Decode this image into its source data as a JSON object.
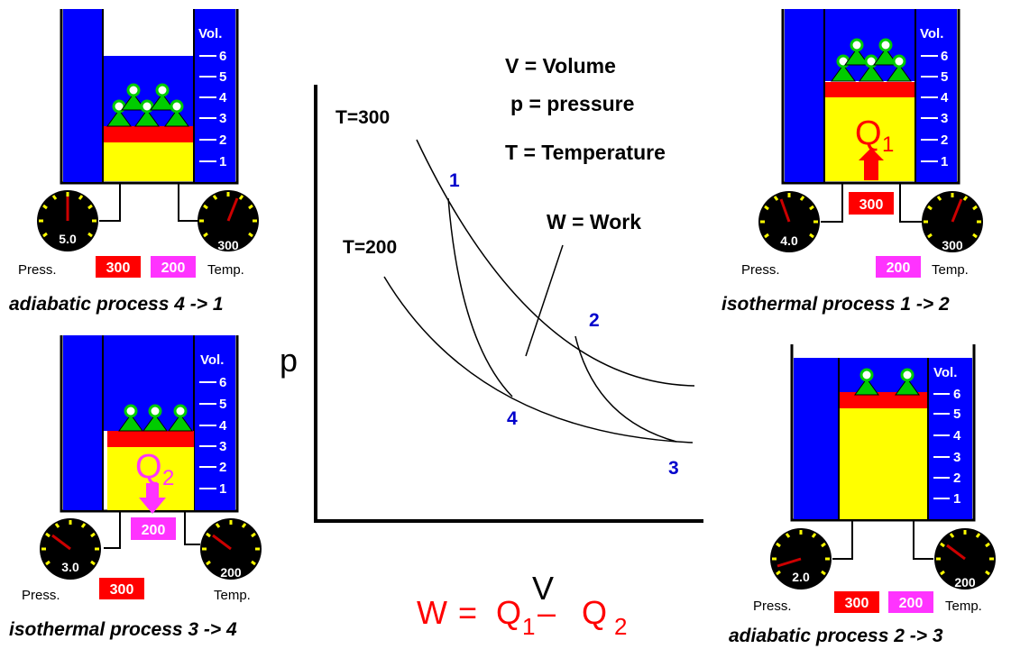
{
  "legend": {
    "volume": "V = Volume",
    "pressure": "p = pressure",
    "temperature": "T = Temperature",
    "work": "W = Work"
  },
  "diagram": {
    "y_axis_label": "p",
    "x_axis_label": "V",
    "isotherm_high": "T=300",
    "isotherm_low": "T=200",
    "points": [
      "1",
      "2",
      "3",
      "4"
    ],
    "formula": {
      "w": "W",
      "eq": "=",
      "q": "Q",
      "sub1": "1",
      "minus": "–",
      "sub2": "2"
    }
  },
  "common": {
    "vol_label": "Vol.",
    "vol_ticks": [
      "6",
      "5",
      "4",
      "3",
      "2",
      "1"
    ],
    "press_label": "Press.",
    "temp_label": "Temp.",
    "hot_reservoir": "300",
    "cold_reservoir": "200",
    "heat_in_symbol": "Q",
    "heat_in_sub": "1",
    "heat_out_symbol": "Q",
    "heat_out_sub": "2"
  },
  "panels": {
    "p41": {
      "caption": "adiabatic process  4 -> 1",
      "pressure": "5.0",
      "temperature": "300",
      "volume_level": 1.8
    },
    "p12": {
      "caption": "isothermal process  1 -> 2",
      "pressure": "4.0",
      "temperature": "300",
      "volume_level": 4.3,
      "heat_value": "300"
    },
    "p34": {
      "caption": "isothermal process  3 -> 4",
      "pressure": "3.0",
      "temperature": "200",
      "volume_level": 3.2,
      "heat_value": "200"
    },
    "p23": {
      "caption": "adiabatic process  2 -> 3",
      "pressure": "2.0",
      "temperature": "200",
      "volume_level": 5.2
    }
  },
  "colors": {
    "water": "#0000ff",
    "gas": "#ffff00",
    "piston": "#ff0000",
    "weights": "#00cc00",
    "hot_badge": "#ff0000",
    "cold_badge": "#ff33ff",
    "formula": "#ff0000",
    "point_labels": "#0000cc"
  }
}
